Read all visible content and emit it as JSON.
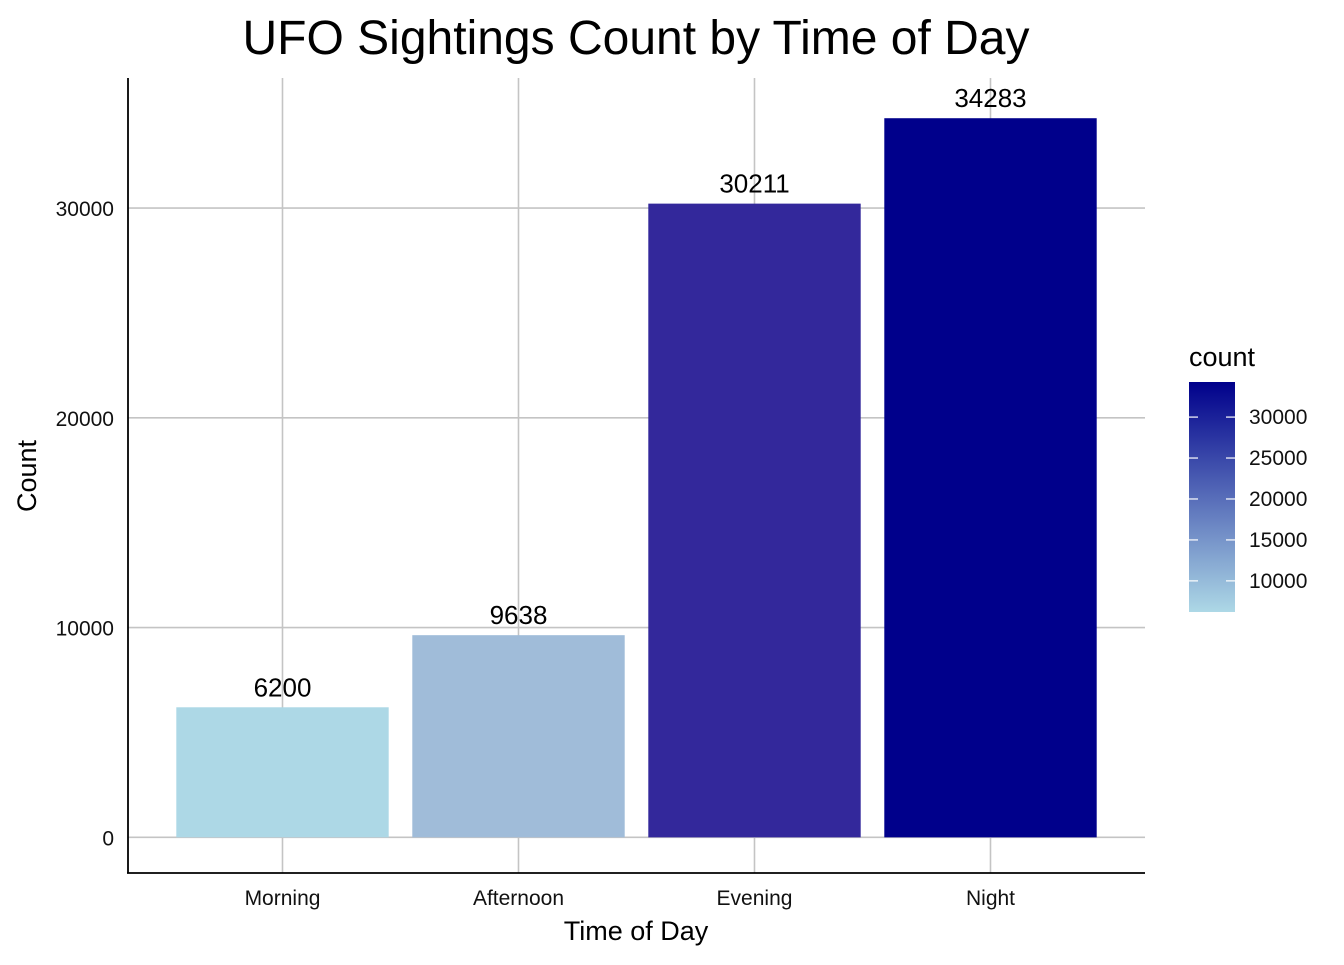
{
  "chart_data": {
    "type": "bar",
    "title": "UFO Sightings Count by Time of Day",
    "xlabel": "Time of Day",
    "ylabel": "Count",
    "categories": [
      "Morning",
      "Afternoon",
      "Evening",
      "Night"
    ],
    "values": [
      6200,
      9638,
      30211,
      34283
    ],
    "data_labels": [
      "6200",
      "9638",
      "30211",
      "34283"
    ],
    "bar_colors": [
      "#ADD8E6",
      "#A0BCD9",
      "#33289B",
      "#00008B"
    ],
    "ylim": [
      -1700,
      36200
    ],
    "y_ticks": [
      0,
      10000,
      20000,
      30000
    ],
    "y_tick_labels": [
      "0",
      "10000",
      "20000",
      "30000"
    ],
    "grid": true,
    "legend": {
      "title": "count",
      "position": "right",
      "type": "colorbar",
      "range": [
        6200,
        34283
      ],
      "low_color": "#ADD8E6",
      "high_color": "#00008B",
      "ticks": [
        10000,
        15000,
        20000,
        25000,
        30000
      ],
      "tick_labels": [
        "10000",
        "15000",
        "20000",
        "25000",
        "30000"
      ]
    }
  }
}
